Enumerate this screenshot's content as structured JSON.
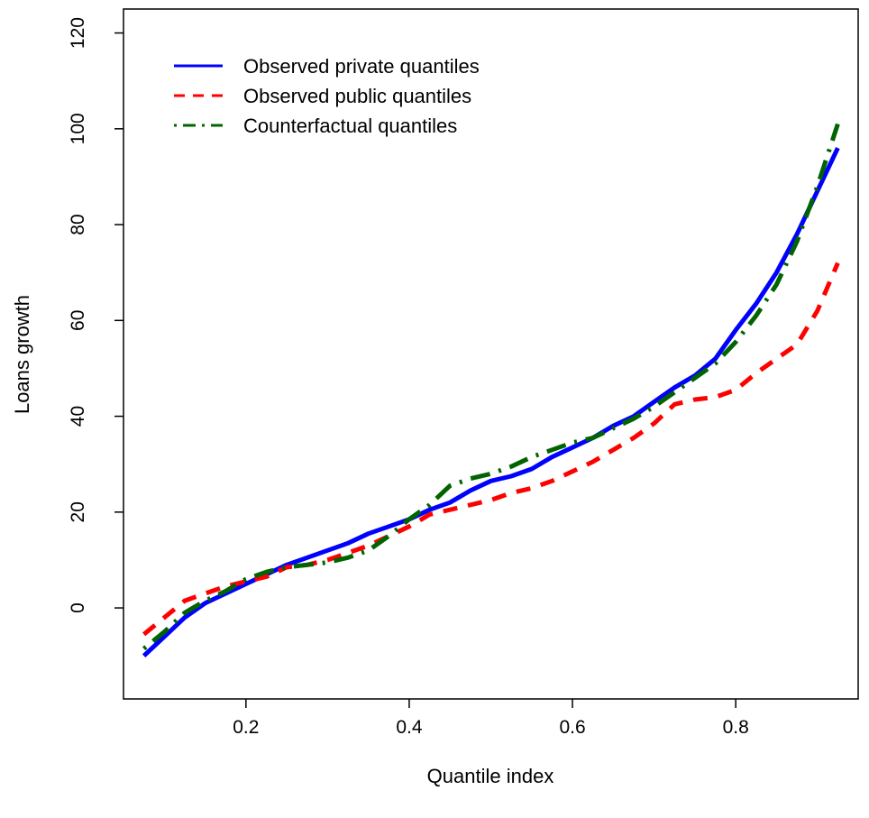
{
  "chart_data": {
    "type": "line",
    "xlabel": "Quantile index",
    "ylabel": "Loans growth",
    "xlim": [
      0.05,
      0.95
    ],
    "ylim": [
      -19,
      125
    ],
    "xticks": [
      0.2,
      0.4,
      0.6,
      0.8
    ],
    "xtick_labels": [
      "0.2",
      "0.4",
      "0.6",
      "0.8"
    ],
    "yticks": [
      0,
      20,
      40,
      60,
      80,
      100,
      120
    ],
    "ytick_labels": [
      "0",
      "20",
      "40",
      "60",
      "80",
      "100",
      "120"
    ],
    "grid": false,
    "legend_position": "top-left",
    "series": [
      {
        "name": "Observed private quantiles",
        "color": "#0000ff",
        "dash": "solid",
        "x": [
          0.075,
          0.1,
          0.125,
          0.15,
          0.175,
          0.2,
          0.225,
          0.25,
          0.275,
          0.3,
          0.325,
          0.35,
          0.375,
          0.4,
          0.425,
          0.45,
          0.475,
          0.5,
          0.525,
          0.55,
          0.575,
          0.6,
          0.625,
          0.65,
          0.675,
          0.7,
          0.725,
          0.75,
          0.775,
          0.8,
          0.825,
          0.85,
          0.875,
          0.9,
          0.925
        ],
        "y": [
          -10,
          -6,
          -2,
          1,
          3,
          5,
          7,
          9,
          10.5,
          12,
          13.5,
          15.5,
          17,
          18.5,
          20.5,
          22,
          24.5,
          26.5,
          27.5,
          29,
          31.5,
          33.5,
          35.5,
          38,
          40,
          43,
          46,
          48.5,
          52,
          58,
          63.5,
          70,
          78,
          87,
          96
        ]
      },
      {
        "name": "Observed public quantiles",
        "color": "#ff0000",
        "dash": "dashed",
        "x": [
          0.075,
          0.1,
          0.125,
          0.15,
          0.175,
          0.2,
          0.225,
          0.25,
          0.275,
          0.3,
          0.325,
          0.35,
          0.375,
          0.4,
          0.425,
          0.45,
          0.475,
          0.5,
          0.525,
          0.55,
          0.575,
          0.6,
          0.625,
          0.65,
          0.675,
          0.7,
          0.725,
          0.75,
          0.775,
          0.8,
          0.825,
          0.85,
          0.875,
          0.9,
          0.925
        ],
        "y": [
          -5.5,
          -2,
          1.5,
          3,
          4.5,
          5.5,
          6.5,
          8.5,
          9,
          10,
          11.5,
          13,
          15,
          17,
          19.5,
          20.5,
          21.5,
          22.5,
          24,
          25,
          26.5,
          28.5,
          30.5,
          33,
          35.5,
          38.5,
          42.5,
          43.5,
          44,
          45.5,
          49,
          52,
          55,
          62,
          72
        ]
      },
      {
        "name": "Counterfactual quantiles",
        "color": "#006400",
        "dash": "dotdash",
        "x": [
          0.075,
          0.1,
          0.125,
          0.15,
          0.175,
          0.2,
          0.225,
          0.25,
          0.275,
          0.3,
          0.325,
          0.35,
          0.375,
          0.4,
          0.425,
          0.45,
          0.475,
          0.5,
          0.525,
          0.55,
          0.575,
          0.6,
          0.625,
          0.65,
          0.675,
          0.7,
          0.725,
          0.75,
          0.775,
          0.8,
          0.825,
          0.85,
          0.875,
          0.9,
          0.925
        ],
        "y": [
          -8.5,
          -5,
          -1,
          1.5,
          3.5,
          6,
          7.5,
          8.5,
          9,
          9.5,
          10.5,
          12,
          15,
          18.5,
          21.5,
          25.5,
          27,
          28,
          29.5,
          31.5,
          33,
          34.5,
          35.5,
          37.5,
          39.5,
          42,
          45,
          48,
          51,
          55.5,
          61,
          67.5,
          76.5,
          88,
          101
        ]
      }
    ]
  }
}
